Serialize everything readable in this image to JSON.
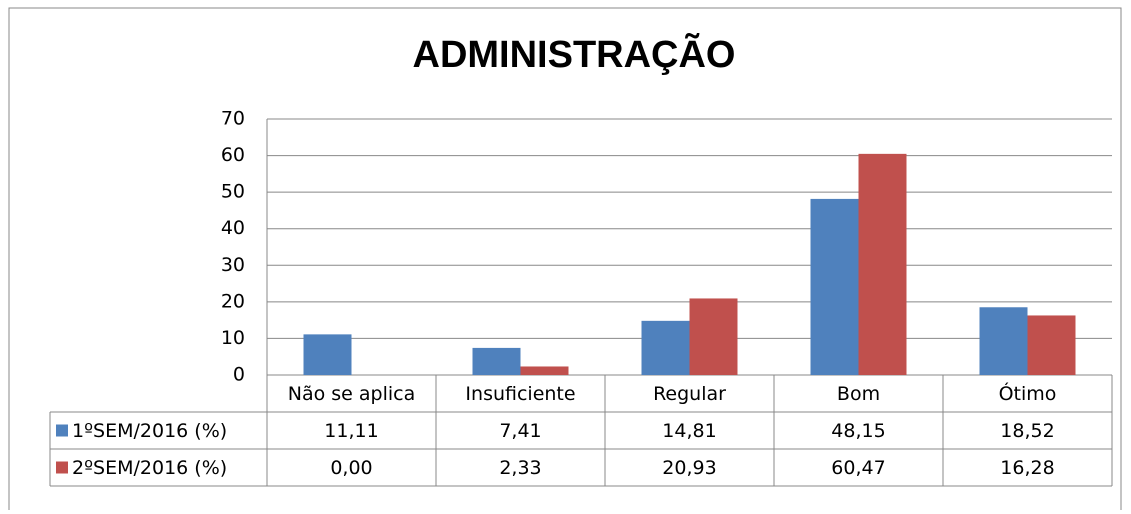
{
  "chart_data": {
    "type": "bar",
    "title": "ADMINISTRAÇÃO",
    "categories": [
      "Não se aplica",
      "Insuficiente",
      "Regular",
      "Bom",
      "Ótimo"
    ],
    "series": [
      {
        "name": "1ºSEM/2016 (%)",
        "color": "#4f81bd",
        "values": [
          11.11,
          7.41,
          14.81,
          48.15,
          18.52
        ],
        "value_labels": [
          "11,11",
          "7,41",
          "14,81",
          "48,15",
          "18,52"
        ]
      },
      {
        "name": "2ºSEM/2016 (%)",
        "color": "#c0504d",
        "values": [
          0.0,
          2.33,
          20.93,
          60.47,
          16.28
        ],
        "value_labels": [
          "0,00",
          "2,33",
          "20,93",
          "60,47",
          "16,28"
        ]
      }
    ],
    "ylim": [
      0,
      70
    ],
    "yticks": [
      0,
      10,
      20,
      30,
      40,
      50,
      60,
      70
    ],
    "grid": true
  }
}
